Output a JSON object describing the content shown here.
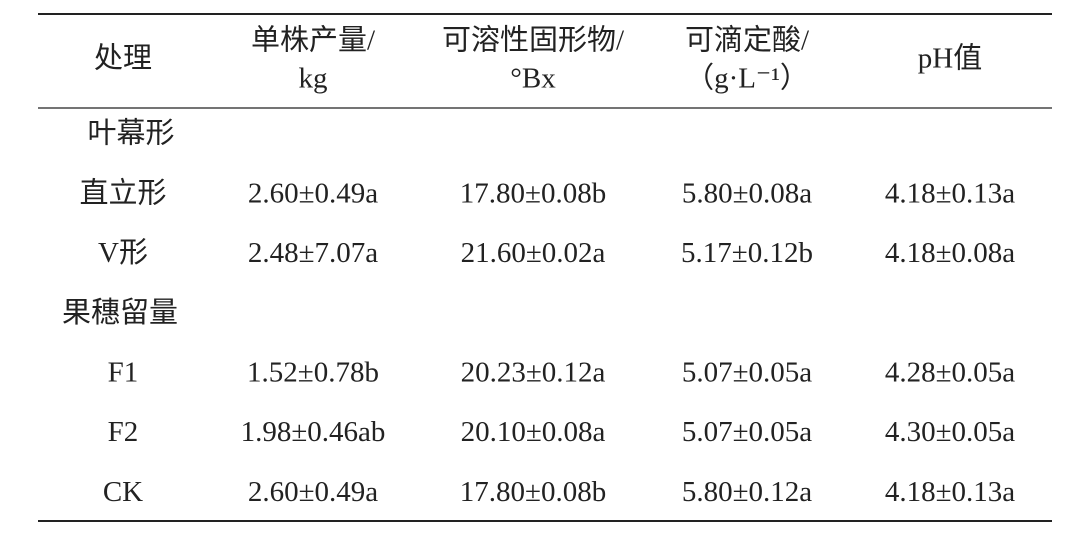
{
  "table": {
    "header": [
      [
        "处理"
      ],
      [
        "单株产量/",
        "kg"
      ],
      [
        "可溶性固形物/",
        "°Bx"
      ],
      [
        "可滴定酸/",
        "（g·L⁻¹）"
      ],
      [
        "pH值"
      ]
    ],
    "rows": [
      [
        "叶幕形"
      ],
      [
        "直立形",
        "2.60±0.49a",
        "17.80±0.08b",
        "5.80±0.08a",
        "4.18±0.13a"
      ],
      [
        "V形",
        "2.48±7.07a",
        "21.60±0.02a",
        "5.17±0.12b",
        "4.18±0.08a"
      ],
      [
        "果穗留量"
      ],
      [
        "F1",
        "1.52±0.78b",
        "20.23±0.12a",
        "5.07±0.05a",
        "4.28±0.05a"
      ],
      [
        "F2",
        "1.98±0.46ab",
        "20.10±0.08a",
        "5.07±0.05a",
        "4.30±0.05a"
      ],
      [
        "CK",
        "2.60±0.49a",
        "17.80±0.08b",
        "5.80±0.12a",
        "4.18±0.13a"
      ]
    ]
  }
}
